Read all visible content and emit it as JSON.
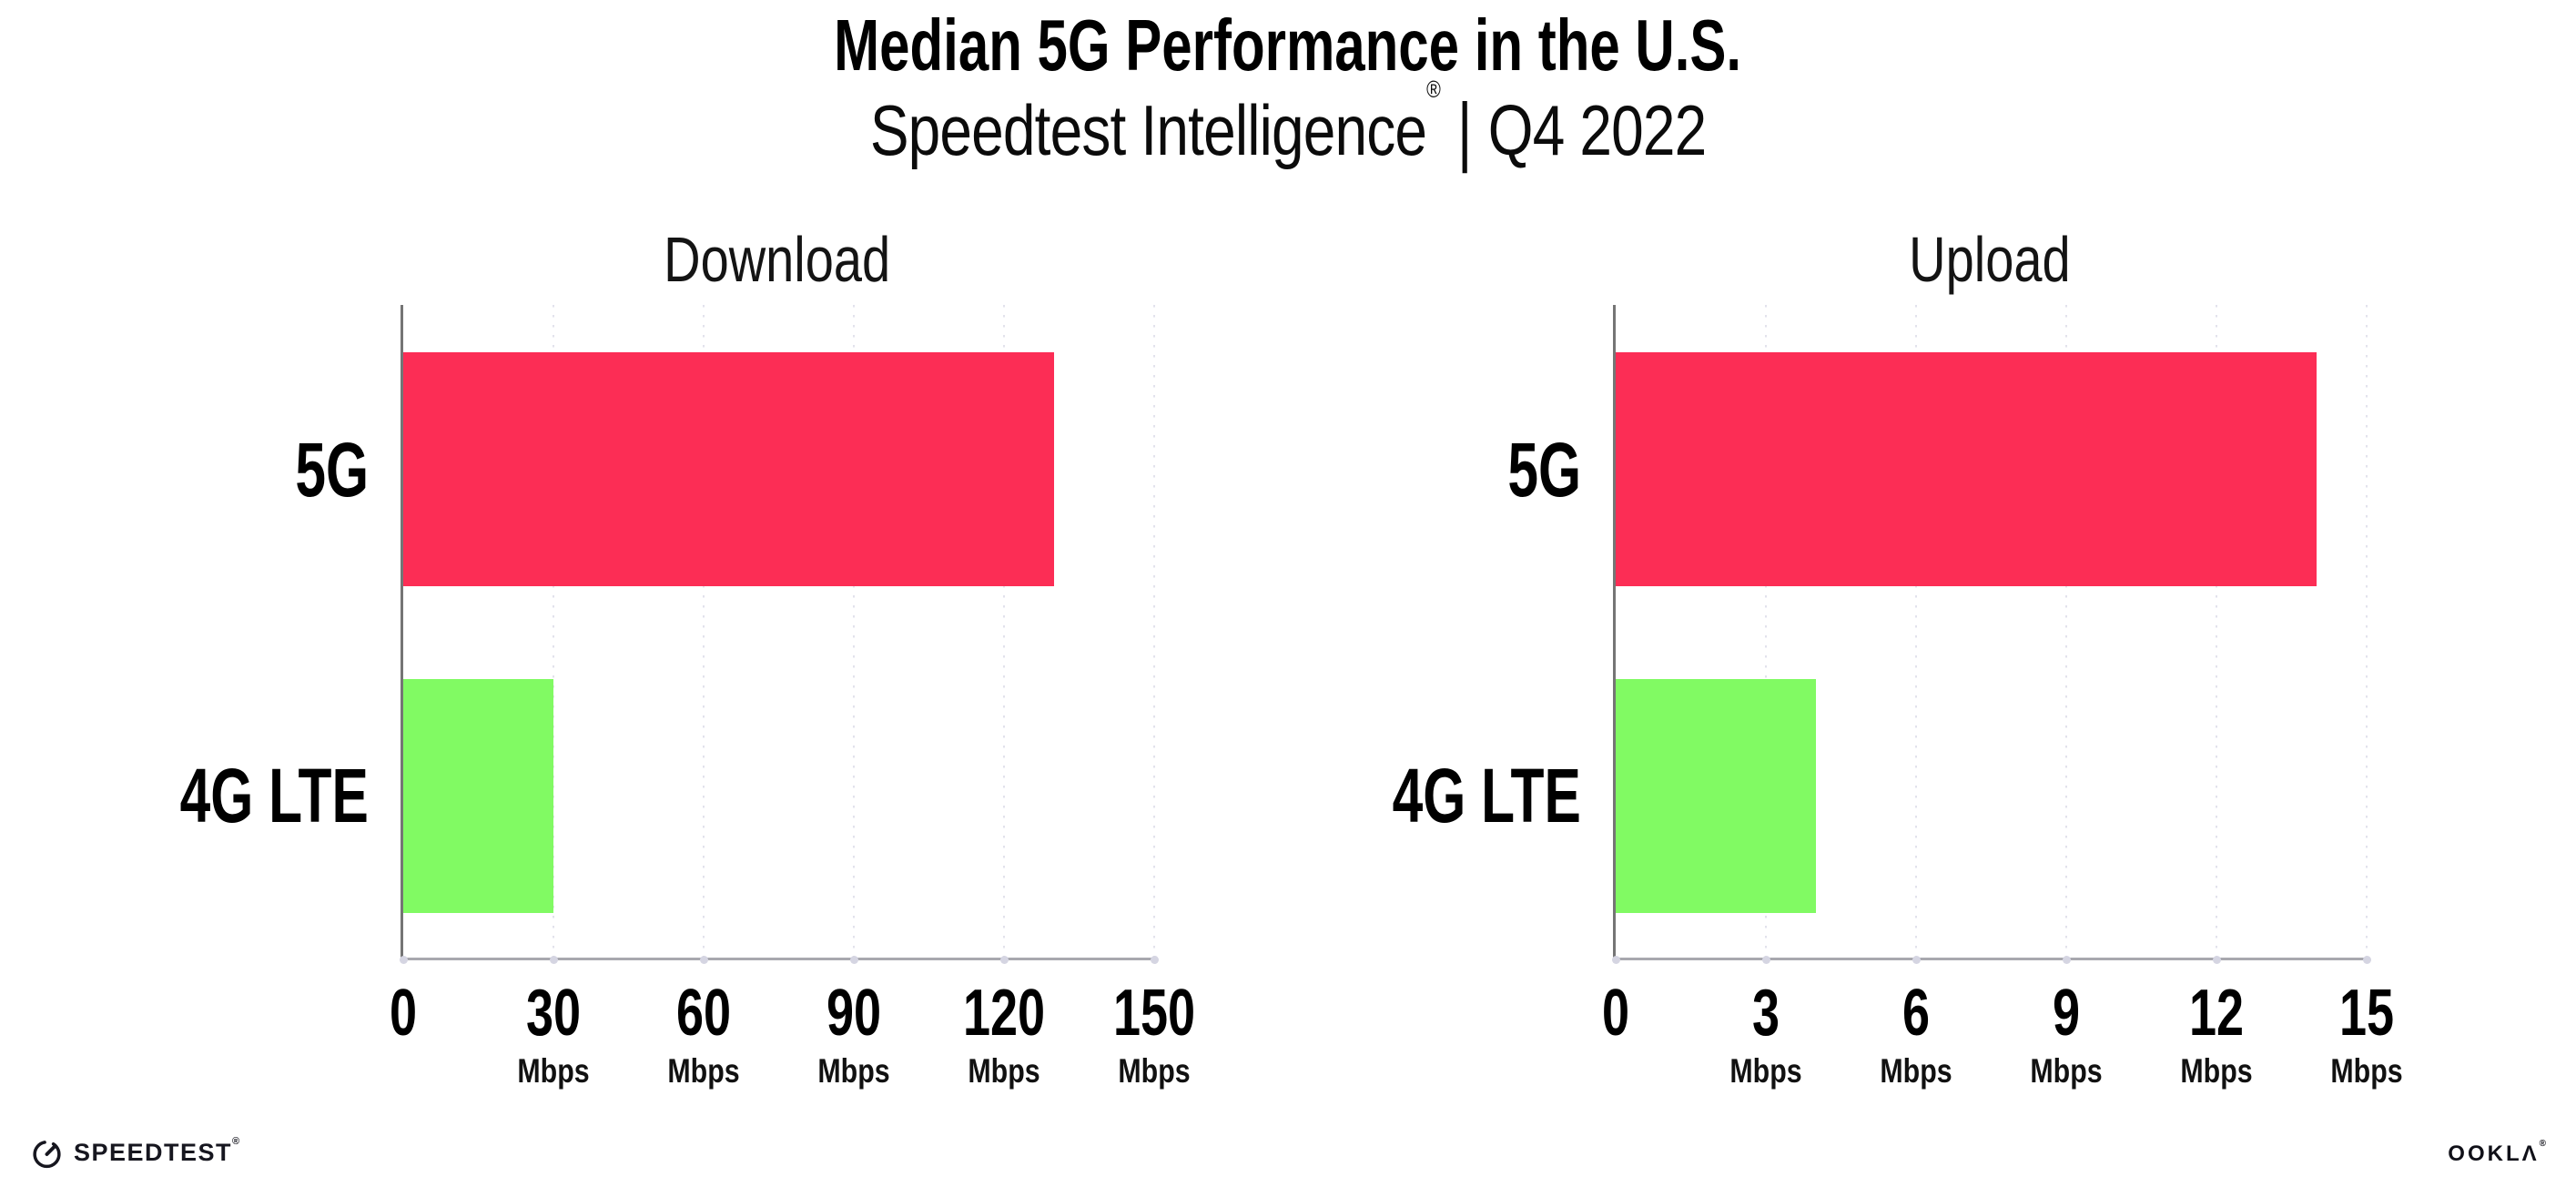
{
  "header": {
    "title": "Median 5G Performance in the U.S.",
    "subtitle_brand": "Speedtest Intelligence",
    "subtitle_registered": "®",
    "subtitle_separator": "|",
    "subtitle_period": "Q4 2022"
  },
  "chart_data": [
    {
      "type": "bar",
      "orientation": "horizontal",
      "title": "Download",
      "categories": [
        "5G",
        "4G LTE"
      ],
      "values": [
        130,
        30
      ],
      "unit": "Mbps",
      "xlim": [
        0,
        150
      ],
      "xticks": [
        0,
        30,
        60,
        90,
        120,
        150
      ],
      "bar_colors": [
        "#FC2D55",
        "#81FA63"
      ],
      "grid": "dotted-vertical-light"
    },
    {
      "type": "bar",
      "orientation": "horizontal",
      "title": "Upload",
      "categories": [
        "5G",
        "4G LTE"
      ],
      "values": [
        14,
        4
      ],
      "unit": "Mbps",
      "xlim": [
        0,
        15
      ],
      "xticks": [
        0,
        3,
        6,
        9,
        12,
        15
      ],
      "bar_colors": [
        "#FC2D55",
        "#81FA63"
      ],
      "grid": "dotted-vertical-light"
    }
  ],
  "colors": {
    "bar_5g": "#FC2D55",
    "bar_4g_lte": "#81FA63",
    "y_axis_line": "#757575",
    "x_axis_line": "#A8A8AE",
    "gridline": "#E2E2EC",
    "axis_dot": "#D5D5E2",
    "text": "#000000"
  },
  "footer": {
    "speedtest_wordmark": "SPEEDTEST",
    "speedtest_registered": "®",
    "ookla_wordmark": "OOKLΛ",
    "ookla_registered": "®"
  }
}
